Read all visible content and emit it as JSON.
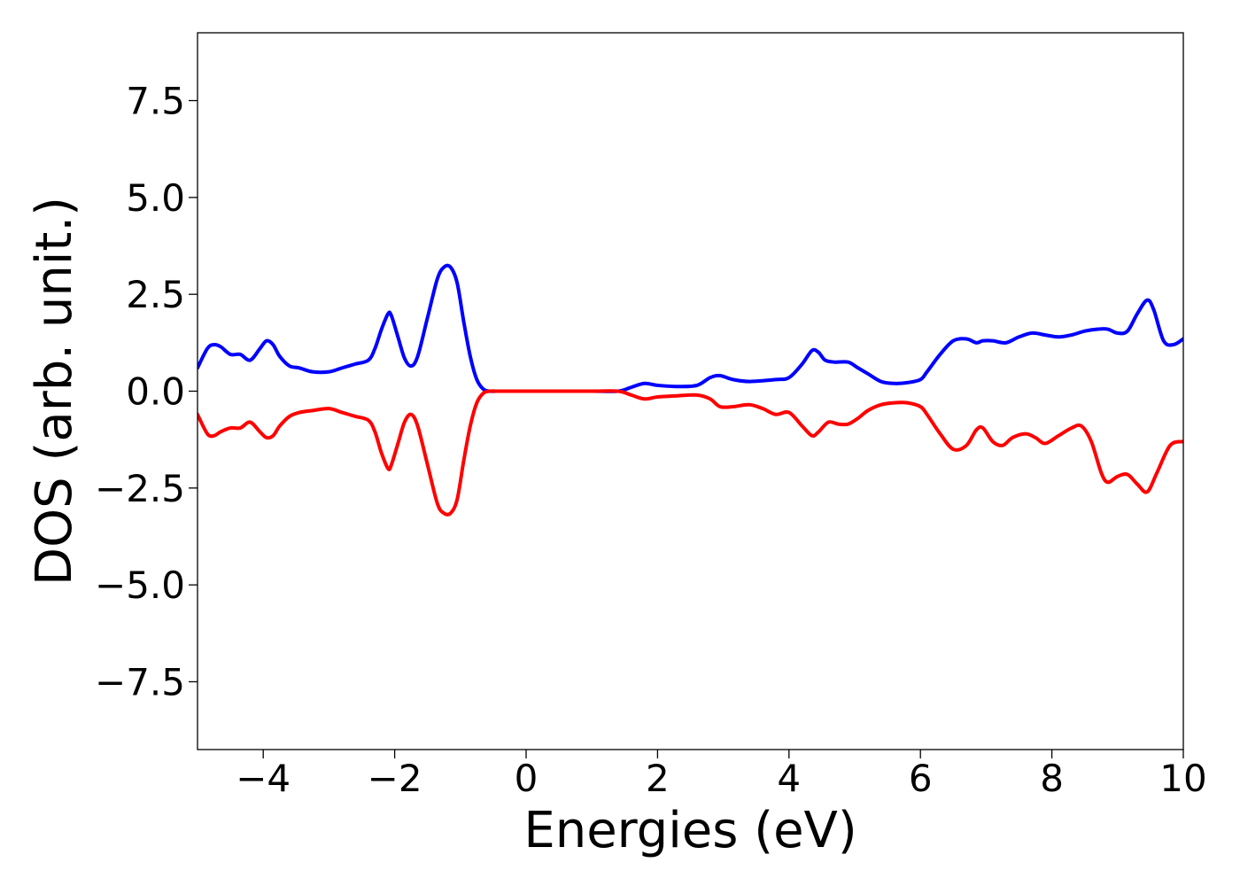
{
  "chart_data": {
    "type": "line",
    "xlabel": "Energies (eV)",
    "ylabel": "DOS (arb. unit.)",
    "xlim": [
      -5,
      10
    ],
    "ylim": [
      -9.25,
      9.25
    ],
    "x_ticks": [
      -4,
      -2,
      0,
      2,
      4,
      6,
      8,
      10
    ],
    "x_tick_labels": [
      "−4",
      "−2",
      "0",
      "2",
      "4",
      "6",
      "8",
      "10"
    ],
    "y_ticks": [
      7.5,
      5.0,
      2.5,
      0.0,
      -2.5,
      -5.0,
      -7.5
    ],
    "y_tick_labels": [
      "7.5",
      "5.0",
      "2.5",
      "0.0",
      "−2.5",
      "−5.0",
      "−7.5"
    ],
    "grid": false,
    "legend": "none",
    "series": [
      {
        "color": "#0000ff",
        "x": [
          -5.0,
          -4.85,
          -4.75,
          -4.65,
          -4.5,
          -4.35,
          -4.2,
          -4.05,
          -3.95,
          -3.85,
          -3.75,
          -3.6,
          -3.45,
          -3.25,
          -3.0,
          -2.8,
          -2.6,
          -2.4,
          -2.3,
          -2.2,
          -2.1,
          -2.05,
          -1.95,
          -1.85,
          -1.75,
          -1.65,
          -1.5,
          -1.35,
          -1.25,
          -1.15,
          -1.05,
          -0.95,
          -0.85,
          -0.75,
          -0.65,
          -0.55,
          -0.45,
          -0.3,
          0.0,
          0.5,
          1.0,
          1.4,
          1.6,
          1.8,
          2.0,
          2.3,
          2.6,
          2.8,
          2.95,
          3.15,
          3.4,
          3.8,
          4.0,
          4.2,
          4.35,
          4.45,
          4.55,
          4.7,
          4.9,
          5.05,
          5.2,
          5.4,
          5.6,
          5.8,
          6.0,
          6.1,
          6.3,
          6.5,
          6.7,
          6.85,
          6.95,
          7.1,
          7.3,
          7.5,
          7.7,
          7.9,
          8.1,
          8.3,
          8.5,
          8.7,
          8.85,
          9.0,
          9.15,
          9.3,
          9.45,
          9.55,
          9.7,
          9.85,
          10.0
        ],
        "y": [
          0.6,
          1.1,
          1.2,
          1.15,
          0.95,
          0.95,
          0.8,
          1.1,
          1.3,
          1.2,
          0.9,
          0.65,
          0.6,
          0.5,
          0.5,
          0.6,
          0.7,
          0.8,
          1.1,
          1.6,
          2.0,
          1.95,
          1.4,
          0.85,
          0.65,
          0.9,
          1.9,
          2.9,
          3.2,
          3.2,
          2.8,
          1.8,
          0.9,
          0.3,
          0.05,
          0.0,
          0.0,
          0.0,
          0.0,
          0.0,
          0.0,
          0.0,
          0.1,
          0.2,
          0.15,
          0.12,
          0.15,
          0.35,
          0.4,
          0.3,
          0.25,
          0.3,
          0.35,
          0.7,
          1.05,
          1.0,
          0.8,
          0.75,
          0.75,
          0.6,
          0.45,
          0.25,
          0.2,
          0.22,
          0.3,
          0.5,
          0.95,
          1.3,
          1.35,
          1.25,
          1.3,
          1.3,
          1.25,
          1.4,
          1.5,
          1.45,
          1.4,
          1.45,
          1.55,
          1.6,
          1.6,
          1.5,
          1.55,
          2.0,
          2.35,
          2.1,
          1.3,
          1.2,
          1.35
        ]
      },
      {
        "color": "#ff0000",
        "x": [
          -5.0,
          -4.85,
          -4.75,
          -4.65,
          -4.5,
          -4.35,
          -4.2,
          -4.05,
          -3.95,
          -3.85,
          -3.75,
          -3.6,
          -3.45,
          -3.25,
          -3.0,
          -2.8,
          -2.6,
          -2.4,
          -2.3,
          -2.2,
          -2.1,
          -2.05,
          -1.95,
          -1.85,
          -1.75,
          -1.65,
          -1.5,
          -1.35,
          -1.25,
          -1.15,
          -1.05,
          -0.95,
          -0.85,
          -0.75,
          -0.65,
          -0.55,
          -0.45,
          -0.3,
          0.0,
          0.5,
          1.0,
          1.4,
          1.6,
          1.8,
          2.0,
          2.3,
          2.6,
          2.8,
          2.95,
          3.15,
          3.4,
          3.6,
          3.8,
          4.0,
          4.2,
          4.35,
          4.45,
          4.6,
          4.75,
          4.9,
          5.05,
          5.2,
          5.4,
          5.6,
          5.8,
          6.0,
          6.1,
          6.3,
          6.5,
          6.7,
          6.85,
          6.95,
          7.1,
          7.25,
          7.4,
          7.6,
          7.75,
          7.9,
          8.1,
          8.3,
          8.45,
          8.6,
          8.75,
          8.85,
          9.0,
          9.15,
          9.3,
          9.45,
          9.6,
          9.8,
          10.0
        ],
        "y": [
          -0.6,
          -1.1,
          -1.15,
          -1.05,
          -0.95,
          -0.95,
          -0.8,
          -1.05,
          -1.2,
          -1.15,
          -0.9,
          -0.65,
          -0.55,
          -0.5,
          -0.45,
          -0.55,
          -0.65,
          -0.75,
          -1.05,
          -1.6,
          -2.0,
          -1.9,
          -1.35,
          -0.8,
          -0.6,
          -0.9,
          -1.9,
          -2.9,
          -3.15,
          -3.15,
          -2.8,
          -1.8,
          -0.9,
          -0.3,
          -0.05,
          0.0,
          0.0,
          0.0,
          0.0,
          0.0,
          0.0,
          0.0,
          -0.1,
          -0.2,
          -0.15,
          -0.12,
          -0.1,
          -0.2,
          -0.4,
          -0.4,
          -0.35,
          -0.45,
          -0.6,
          -0.55,
          -0.9,
          -1.15,
          -1.05,
          -0.8,
          -0.85,
          -0.85,
          -0.7,
          -0.5,
          -0.35,
          -0.3,
          -0.3,
          -0.4,
          -0.6,
          -1.1,
          -1.5,
          -1.4,
          -1.0,
          -0.95,
          -1.3,
          -1.4,
          -1.2,
          -1.1,
          -1.2,
          -1.35,
          -1.15,
          -0.95,
          -0.9,
          -1.3,
          -2.1,
          -2.35,
          -2.2,
          -2.15,
          -2.4,
          -2.6,
          -2.1,
          -1.4,
          -1.3
        ]
      }
    ]
  }
}
